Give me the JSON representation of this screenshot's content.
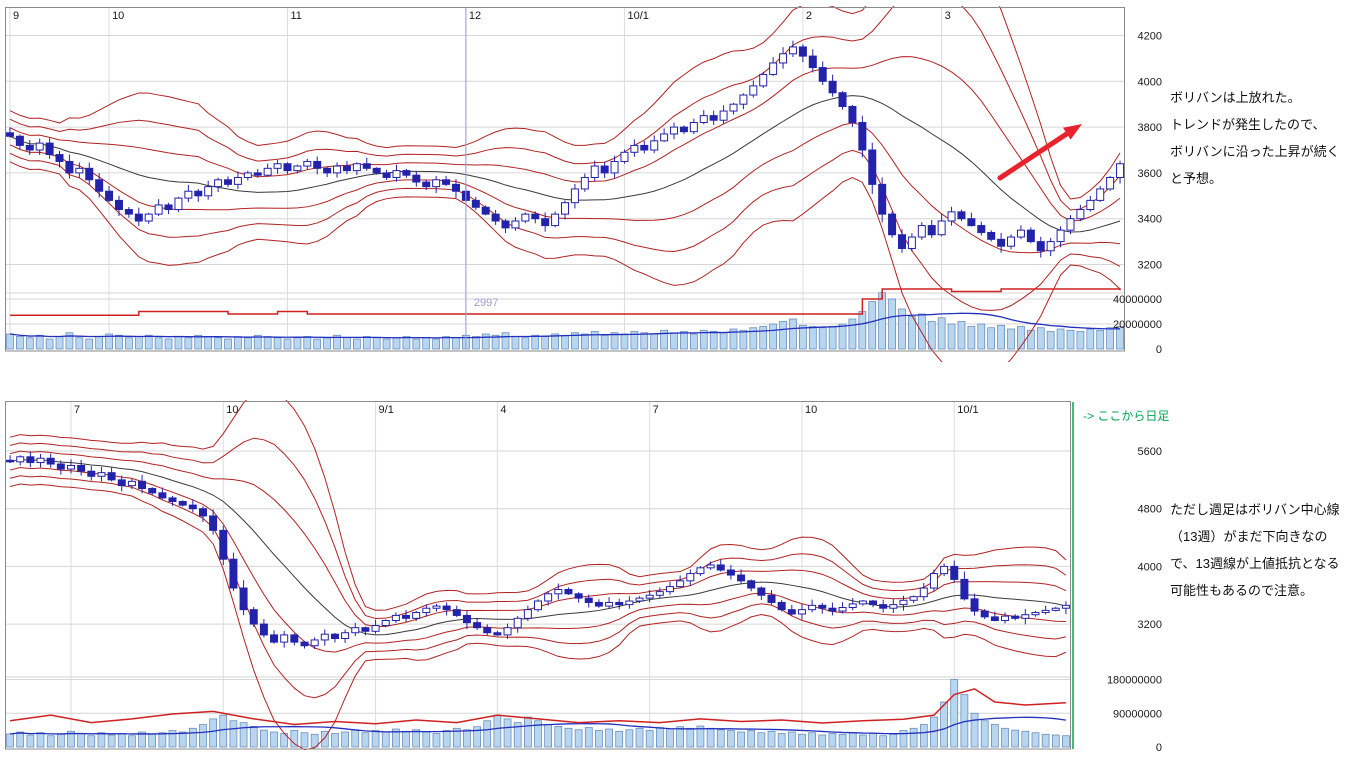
{
  "colors": {
    "grid": "#d6d6d6",
    "grid_v": "#dcdce4",
    "border": "#8a8a8a",
    "axis_text": "#1a1a1a",
    "band": "#b22222",
    "center": "#3a3a3a",
    "candle": "#2222aa",
    "volume_fill": "#b9d6f0",
    "volume_stroke": "#5b83b8",
    "vol_ma_blue": "#2230c0",
    "vol_ma_red": "#d02020"
  },
  "arrow": {
    "color": "#e8232e"
  },
  "annotations": {
    "daily": {
      "lines": [
        "ボリバンは上放れた。",
        "トレンドが発生したので、",
        "ボリバンに沿った上昇が続く",
        "と予想。"
      ]
    },
    "weekly": {
      "lines": [
        "ただし週足はボリバン中心線",
        "（13週）がまだ下向きなの",
        "で、13週線が上値抵抗となる",
        "可能性もあるので注意。"
      ]
    }
  },
  "chart_data": [
    {
      "id": "daily",
      "type": "candlestick",
      "timeframe": "daily",
      "legend": "bollinger-bands-with-volume",
      "x_axis_labels": [
        {
          "index": 0,
          "label": "9"
        },
        {
          "index": 10,
          "label": "10"
        },
        {
          "index": 28,
          "label": "11"
        },
        {
          "index": 46,
          "label": "12"
        },
        {
          "index": 62,
          "label": "10/1"
        },
        {
          "index": 80,
          "label": "2"
        },
        {
          "index": 94,
          "label": "3"
        }
      ],
      "y_axis": {
        "price_ticks": [
          4200,
          4000,
          3800,
          3600,
          3400,
          3200
        ],
        "price_range": [
          3080,
          4320
        ]
      },
      "volume_axis": {
        "ticks": [
          40000000,
          20000000,
          0
        ],
        "max": 44000000
      },
      "bollinger_window": 20,
      "cursor": {
        "index": 46,
        "label": "2997",
        "color": "#9b9bd6"
      },
      "series": {
        "open_rule": "previous_close",
        "close": [
          3760,
          3720,
          3700,
          3730,
          3680,
          3650,
          3600,
          3620,
          3570,
          3520,
          3480,
          3440,
          3420,
          3390,
          3420,
          3460,
          3440,
          3490,
          3520,
          3500,
          3540,
          3570,
          3550,
          3580,
          3600,
          3590,
          3620,
          3640,
          3610,
          3630,
          3650,
          3620,
          3600,
          3630,
          3610,
          3640,
          3620,
          3600,
          3580,
          3610,
          3590,
          3560,
          3540,
          3570,
          3550,
          3520,
          3480,
          3450,
          3420,
          3390,
          3360,
          3390,
          3420,
          3400,
          3370,
          3420,
          3470,
          3530,
          3580,
          3630,
          3600,
          3650,
          3690,
          3720,
          3700,
          3740,
          3770,
          3800,
          3780,
          3820,
          3850,
          3830,
          3870,
          3900,
          3940,
          3980,
          4030,
          4080,
          4120,
          4150,
          4110,
          4060,
          4000,
          3950,
          3890,
          3820,
          3700,
          3550,
          3420,
          3330,
          3270,
          3320,
          3370,
          3330,
          3390,
          3430,
          3400,
          3370,
          3340,
          3310,
          3280,
          3320,
          3350,
          3300,
          3260,
          3300,
          3350,
          3400,
          3440,
          3480,
          3530,
          3580,
          3640
        ],
        "volume_unit": 1000000,
        "volume_millions": [
          12,
          10,
          9,
          11,
          8,
          10,
          13,
          9,
          8,
          10,
          12,
          11,
          9,
          10,
          11,
          9,
          8,
          10,
          9,
          11,
          10,
          9,
          8,
          10,
          9,
          11,
          10,
          9,
          8,
          9,
          10,
          8,
          9,
          11,
          9,
          8,
          10,
          9,
          8,
          9,
          10,
          8,
          9,
          8,
          10,
          9,
          11,
          10,
          12,
          11,
          13,
          10,
          9,
          11,
          10,
          12,
          11,
          13,
          12,
          14,
          11,
          13,
          12,
          14,
          13,
          12,
          15,
          13,
          14,
          12,
          15,
          14,
          13,
          16,
          15,
          17,
          18,
          20,
          22,
          24,
          19,
          18,
          17,
          18,
          20,
          24,
          30,
          38,
          45,
          40,
          32,
          26,
          28,
          22,
          25,
          20,
          22,
          18,
          20,
          17,
          19,
          16,
          18,
          15,
          17,
          14,
          16,
          15,
          14,
          16,
          15,
          17,
          18
        ]
      },
      "volume_overlay_red": {
        "interp": "step",
        "unit": 1000000,
        "points": [
          [
            0,
            27
          ],
          [
            13,
            30
          ],
          [
            20,
            30
          ],
          [
            22,
            28
          ],
          [
            27,
            30
          ],
          [
            30,
            28
          ],
          [
            46,
            28
          ],
          [
            60,
            28
          ],
          [
            83,
            28
          ],
          [
            86,
            40
          ],
          [
            88,
            48
          ],
          [
            95,
            46
          ],
          [
            100,
            48
          ],
          [
            112,
            47
          ]
        ]
      }
    },
    {
      "id": "weekly",
      "type": "candlestick",
      "timeframe": "weekly",
      "legend": "bollinger-bands-with-volume",
      "x_axis_labels": [
        {
          "index": 6,
          "label": "7"
        },
        {
          "index": 21,
          "label": "10"
        },
        {
          "index": 36,
          "label": "9/1"
        },
        {
          "index": 48,
          "label": "4"
        },
        {
          "index": 63,
          "label": "7"
        },
        {
          "index": 78,
          "label": "10"
        },
        {
          "index": 93,
          "label": "10/1"
        }
      ],
      "y_axis": {
        "price_ticks": [
          5600,
          4800,
          4000,
          3200
        ],
        "price_range": [
          2480,
          6280
        ]
      },
      "volume_axis": {
        "ticks": [
          180000000,
          90000000,
          0
        ],
        "max": 200000000
      },
      "bollinger_window": 13,
      "day_marker": {
        "label": "-> ここから日足",
        "color": "#00a651"
      },
      "series": {
        "open_rule": "previous_close",
        "close": [
          5450,
          5520,
          5440,
          5500,
          5420,
          5350,
          5400,
          5320,
          5250,
          5300,
          5200,
          5120,
          5180,
          5080,
          5020,
          4950,
          4900,
          4850,
          4800,
          4700,
          4500,
          4100,
          3700,
          3400,
          3200,
          3050,
          2950,
          3050,
          2950,
          2900,
          2980,
          3060,
          3000,
          3080,
          3150,
          3100,
          3180,
          3250,
          3320,
          3280,
          3360,
          3420,
          3450,
          3400,
          3320,
          3220,
          3150,
          3080,
          3050,
          3150,
          3280,
          3400,
          3520,
          3620,
          3680,
          3620,
          3560,
          3500,
          3450,
          3500,
          3470,
          3520,
          3560,
          3600,
          3650,
          3720,
          3800,
          3900,
          3980,
          4020,
          3950,
          3880,
          3800,
          3700,
          3600,
          3500,
          3400,
          3340,
          3400,
          3460,
          3420,
          3380,
          3430,
          3480,
          3520,
          3470,
          3420,
          3470,
          3530,
          3580,
          3700,
          3900,
          4000,
          3820,
          3550,
          3380,
          3300,
          3250,
          3310,
          3280,
          3330,
          3360,
          3390,
          3420,
          3460
        ],
        "volume_unit": 1000000,
        "volume_millions": [
          35,
          40,
          32,
          38,
          30,
          34,
          42,
          36,
          30,
          38,
          32,
          36,
          30,
          40,
          34,
          38,
          44,
          40,
          50,
          60,
          75,
          85,
          70,
          65,
          55,
          45,
          40,
          36,
          44,
          38,
          34,
          42,
          36,
          40,
          46,
          38,
          44,
          40,
          48,
          42,
          46,
          40,
          36,
          44,
          50,
          46,
          54,
          70,
          85,
          75,
          65,
          80,
          70,
          60,
          55,
          50,
          46,
          52,
          44,
          48,
          42,
          46,
          50,
          44,
          52,
          48,
          54,
          50,
          56,
          50,
          46,
          44,
          40,
          44,
          38,
          42,
          36,
          40,
          34,
          38,
          32,
          36,
          34,
          38,
          32,
          36,
          30,
          34,
          44,
          50,
          60,
          80,
          120,
          180,
          140,
          90,
          70,
          60,
          50,
          45,
          42,
          38,
          34,
          32,
          30
        ]
      },
      "volume_overlay_red": {
        "interp": "linear",
        "unit": 1000000,
        "points": [
          [
            0,
            70
          ],
          [
            4,
            85
          ],
          [
            8,
            65
          ],
          [
            12,
            75
          ],
          [
            16,
            88
          ],
          [
            20,
            95
          ],
          [
            24,
            75
          ],
          [
            28,
            60
          ],
          [
            32,
            68
          ],
          [
            36,
            62
          ],
          [
            40,
            72
          ],
          [
            44,
            65
          ],
          [
            48,
            85
          ],
          [
            52,
            75
          ],
          [
            56,
            65
          ],
          [
            60,
            70
          ],
          [
            64,
            65
          ],
          [
            68,
            75
          ],
          [
            72,
            68
          ],
          [
            76,
            72
          ],
          [
            80,
            64
          ],
          [
            84,
            70
          ],
          [
            88,
            74
          ],
          [
            91,
            85
          ],
          [
            93,
            140
          ],
          [
            95,
            155
          ],
          [
            97,
            120
          ],
          [
            100,
            112
          ],
          [
            104,
            118
          ]
        ]
      }
    }
  ]
}
